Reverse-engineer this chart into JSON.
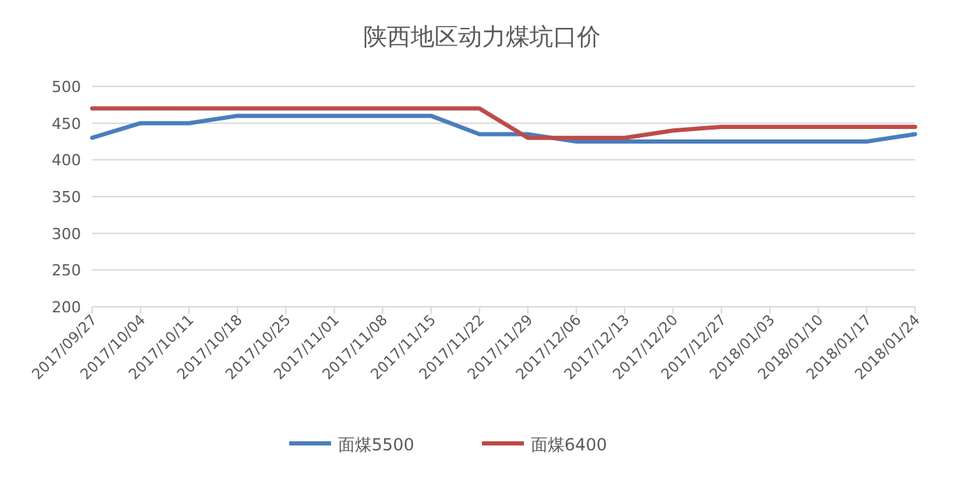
{
  "chart_data": {
    "type": "line",
    "title": "陕西地区动力煤坑口价",
    "categories": [
      "2017/09/27",
      "2017/10/04",
      "2017/10/11",
      "2017/10/18",
      "2017/10/25",
      "2017/11/01",
      "2017/11/08",
      "2017/11/15",
      "2017/11/22",
      "2017/11/29",
      "2017/12/06",
      "2017/12/13",
      "2017/12/20",
      "2017/12/27",
      "2018/01/03",
      "2018/01/10",
      "2018/01/17",
      "2018/01/24"
    ],
    "series": [
      {
        "name": "面煤5500",
        "color": "#4a7ebb",
        "values": [
          430,
          450,
          450,
          460,
          460,
          460,
          460,
          460,
          435,
          435,
          425,
          425,
          425,
          425,
          425,
          425,
          425,
          435
        ]
      },
      {
        "name": "面煤6400",
        "color": "#be4b48",
        "values": [
          470,
          470,
          470,
          470,
          470,
          470,
          470,
          470,
          470,
          430,
          430,
          430,
          440,
          445,
          445,
          445,
          445,
          445
        ]
      }
    ],
    "ylim": [
      200,
      500
    ],
    "yticks": [
      200,
      250,
      300,
      350,
      400,
      450,
      500
    ],
    "grid": "y",
    "legend": "bottom",
    "marker": "none",
    "line_style": "solid"
  }
}
